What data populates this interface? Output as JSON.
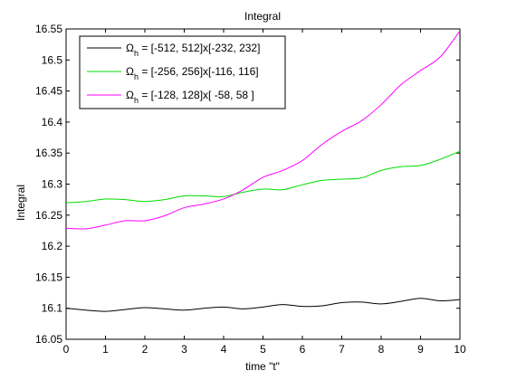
{
  "chart_data": {
    "type": "line",
    "title": "Integral",
    "xlabel": "time \"t\"",
    "ylabel": "Integral",
    "xlim": [
      0,
      10
    ],
    "ylim": [
      16.05,
      16.55
    ],
    "xticks": [
      "0",
      "1",
      "2",
      "3",
      "4",
      "5",
      "6",
      "7",
      "8",
      "9",
      "10"
    ],
    "yticks": [
      "16.05",
      "16.1",
      "16.15",
      "16.2",
      "16.25",
      "16.3",
      "16.35",
      "16.4",
      "16.45",
      "16.5",
      "16.55"
    ],
    "grid": false,
    "legend_position": "top-left",
    "x": [
      0,
      0.5,
      1,
      1.5,
      2,
      2.5,
      3,
      3.5,
      4,
      4.5,
      5,
      5.5,
      6,
      6.5,
      7,
      7.5,
      8,
      8.5,
      9,
      9.5,
      10
    ],
    "series": [
      {
        "name_prefix": "Ω",
        "name_sub": "h",
        "name_suffix": " = [-512, 512]x[-232, 232]",
        "color": "#000000",
        "values": [
          16.1,
          16.097,
          16.095,
          16.098,
          16.101,
          16.099,
          16.097,
          16.1,
          16.102,
          16.099,
          16.102,
          16.106,
          16.103,
          16.104,
          16.109,
          16.11,
          16.107,
          16.111,
          16.116,
          16.112,
          16.114
        ]
      },
      {
        "name_prefix": "Ω",
        "name_sub": "h",
        "name_suffix": " = [-256, 256]x[-116, 116]",
        "color": "#00dd00",
        "values": [
          16.27,
          16.272,
          16.276,
          16.275,
          16.272,
          16.275,
          16.281,
          16.281,
          16.28,
          16.287,
          16.292,
          16.291,
          16.299,
          16.306,
          16.308,
          16.31,
          16.322,
          16.328,
          16.33,
          16.34,
          16.353
        ]
      },
      {
        "name_prefix": "Ω",
        "name_sub": "h",
        "name_suffix": " = [-128, 128]x[ -58,  58 ]",
        "color": "#ff00ff",
        "values": [
          16.229,
          16.228,
          16.234,
          16.241,
          16.241,
          16.249,
          16.262,
          16.268,
          16.276,
          16.291,
          16.311,
          16.322,
          16.338,
          16.364,
          16.385,
          16.402,
          16.428,
          16.46,
          16.483,
          16.505,
          16.547
        ]
      }
    ]
  }
}
